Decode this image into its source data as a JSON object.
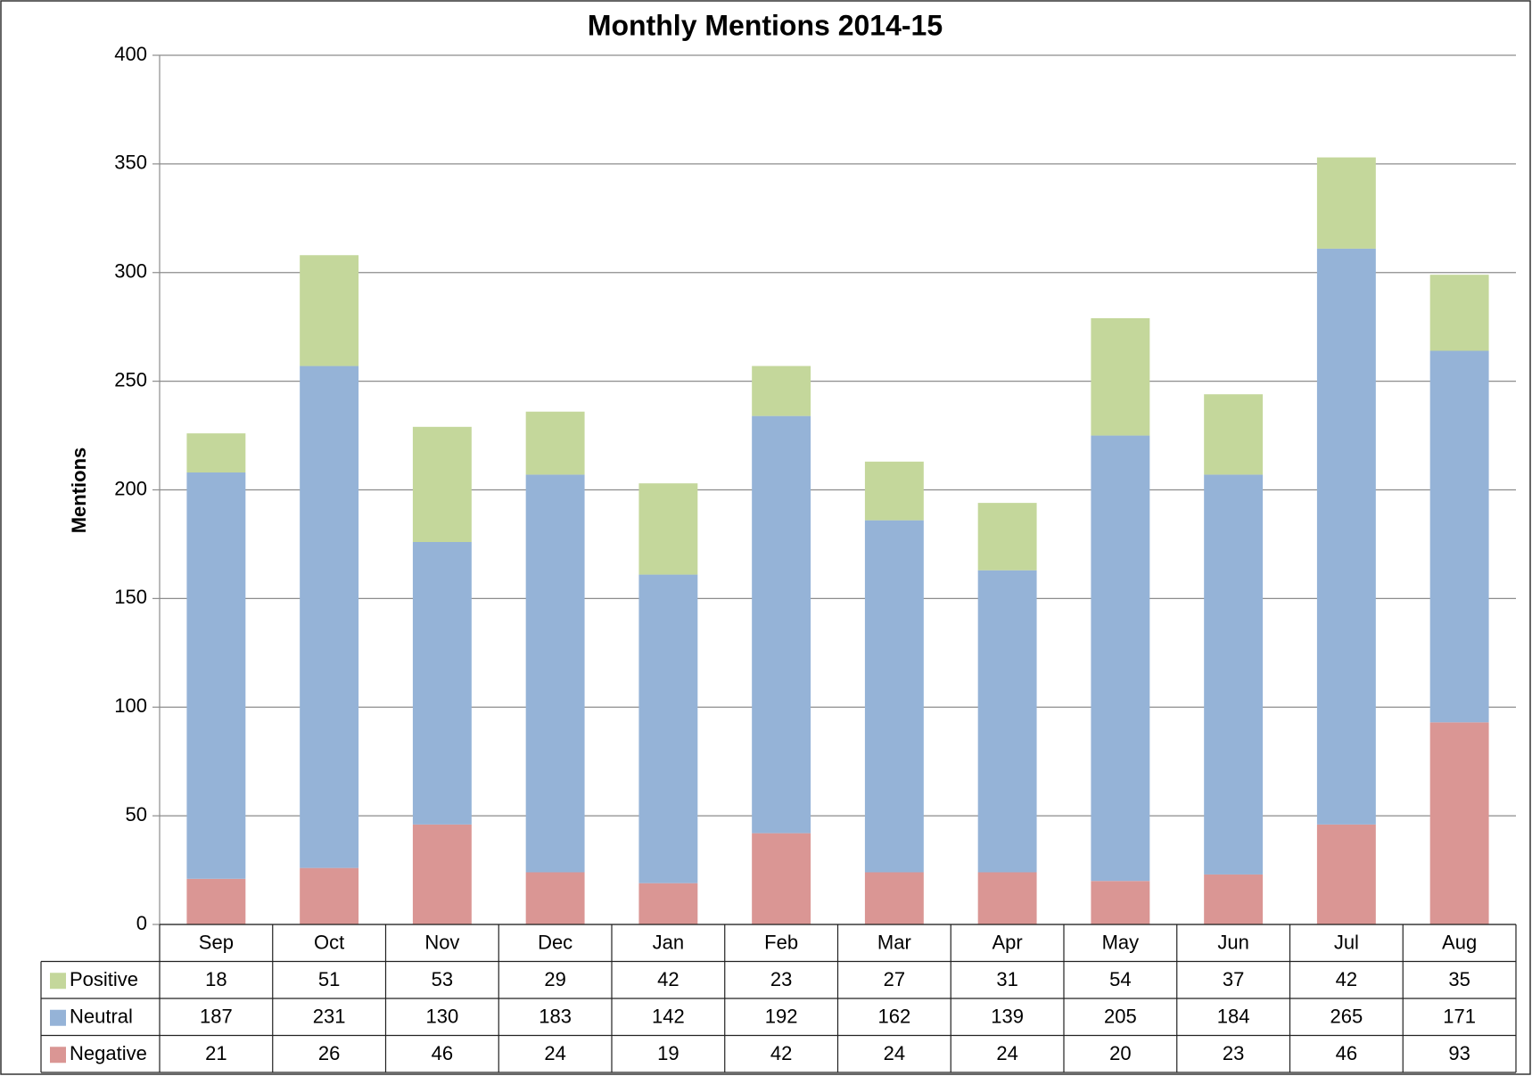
{
  "chart_data": {
    "type": "stacked_bar",
    "title": "Monthly Mentions 2014-15",
    "y_label": "Mentions",
    "categories": [
      "Sep",
      "Oct",
      "Nov",
      "Dec",
      "Jan",
      "Feb",
      "Mar",
      "Apr",
      "May",
      "Jun",
      "Jul",
      "Aug"
    ],
    "series": [
      {
        "name": "Positive",
        "color": "#c4d79b",
        "values": [
          18,
          51,
          53,
          29,
          42,
          23,
          27,
          31,
          54,
          37,
          42,
          35
        ]
      },
      {
        "name": "Neutral",
        "color": "#95b3d7",
        "values": [
          187,
          231,
          130,
          183,
          142,
          192,
          162,
          139,
          205,
          184,
          265,
          171
        ]
      },
      {
        "name": "Negative",
        "color": "#da9694",
        "values": [
          21,
          26,
          46,
          24,
          19,
          42,
          24,
          24,
          20,
          23,
          46,
          93
        ]
      }
    ],
    "ylim": [
      0,
      400
    ],
    "yticks": [
      0,
      50,
      100,
      150,
      200,
      250,
      300,
      350,
      400
    ],
    "grid": true
  }
}
